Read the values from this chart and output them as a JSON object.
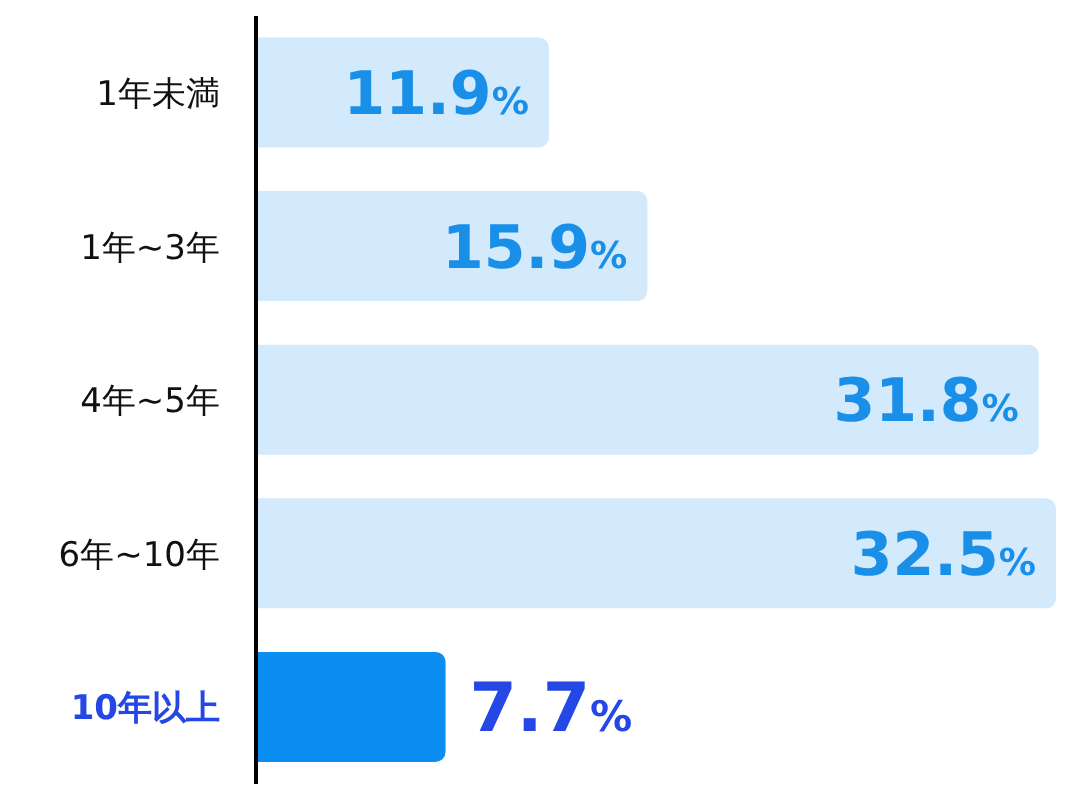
{
  "chart_data": {
    "type": "bar",
    "orientation": "horizontal",
    "categories": [
      "1年未満",
      "1年~3年",
      "4年~5年",
      "6年~10年",
      "10年以上"
    ],
    "values": [
      11.9,
      15.9,
      31.8,
      32.5,
      7.7
    ],
    "colors": [
      "#d3e9fc",
      "#d3e9fc",
      "#d3e9fc",
      "#d3e9fc",
      "#0a8ef2"
    ],
    "value_labels": [
      "11.9%",
      "15.9%",
      "31.8%",
      "32.5%",
      "7.7%"
    ],
    "grid": false,
    "legend": false
  }
}
